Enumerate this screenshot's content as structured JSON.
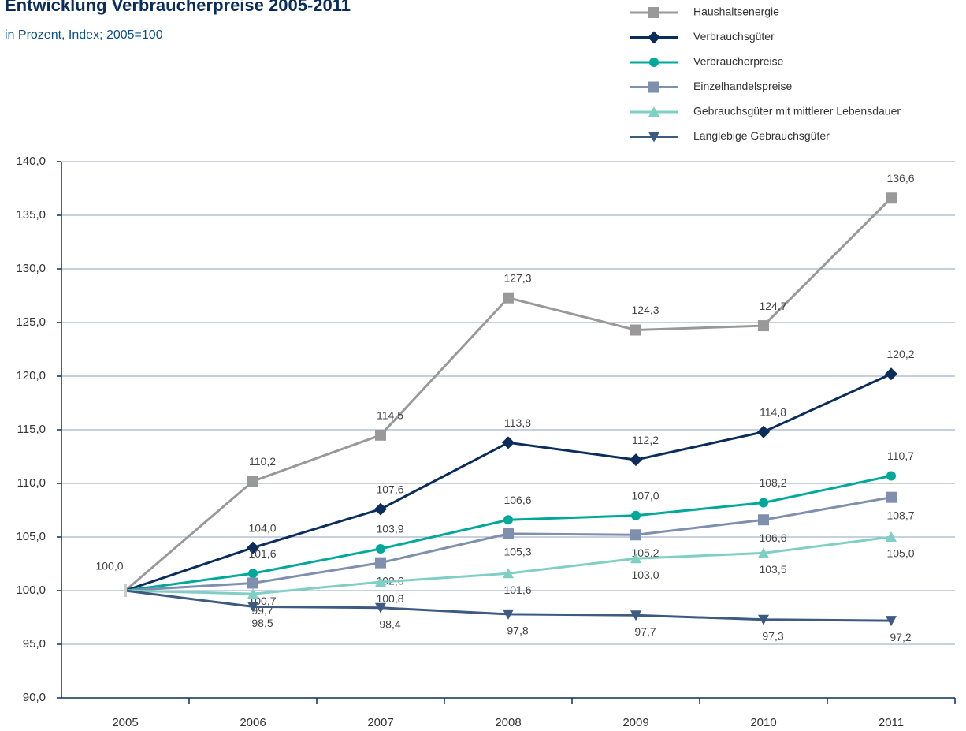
{
  "chart_data": {
    "type": "line",
    "title": "Entwicklung Verbraucherpreise 2005-2011",
    "subtitle": "in Prozent, Index; 2005=100",
    "categories": [
      "2005",
      "2006",
      "2007",
      "2008",
      "2009",
      "2010",
      "2011"
    ],
    "ylim": [
      90,
      140
    ],
    "yticks": [
      {
        "value": 90,
        "label": "90,0"
      },
      {
        "value": 95,
        "label": "95,0"
      },
      {
        "value": 100,
        "label": "100,0"
      },
      {
        "value": 105,
        "label": "105,0"
      },
      {
        "value": 110,
        "label": "110,0"
      },
      {
        "value": 115,
        "label": "115,0"
      },
      {
        "value": 120,
        "label": "120,0"
      },
      {
        "value": 125,
        "label": "125,0"
      },
      {
        "value": 130,
        "label": "130,0"
      },
      {
        "value": 135,
        "label": "135,0"
      },
      {
        "value": 140,
        "label": "140,0"
      }
    ],
    "grid": true,
    "legend": "top-right",
    "series": [
      {
        "name": "Haushaltsenergie",
        "color": "#999999",
        "marker": "square",
        "values": [
          100.0,
          110.2,
          114.5,
          127.3,
          124.3,
          124.7,
          136.6
        ],
        "value_labels": [
          "100,0",
          "110,2",
          "114,5",
          "127,3",
          "124,3",
          "124,7",
          "136,6"
        ]
      },
      {
        "name": "Verbrauchsgüter",
        "color": "#0b2d5b",
        "marker": "diamond",
        "values": [
          100.0,
          104.0,
          107.6,
          113.8,
          112.2,
          114.8,
          120.2
        ],
        "value_labels": [
          null,
          "104,0",
          "107,6",
          "113,8",
          "112,2",
          "114,8",
          "120,2"
        ]
      },
      {
        "name": "Verbraucherpreise",
        "color": "#00a89a",
        "marker": "circle",
        "values": [
          100.0,
          101.6,
          103.9,
          106.6,
          107.0,
          108.2,
          110.7
        ],
        "value_labels": [
          null,
          "101,6",
          "103,9",
          "106,6",
          "107,0",
          "108,2",
          "110,7"
        ]
      },
      {
        "name": "Einzelhandelspreise",
        "color": "#7f8fae",
        "marker": "square",
        "values": [
          100.0,
          100.7,
          102.6,
          105.3,
          105.2,
          106.6,
          108.7
        ],
        "value_labels": [
          null,
          "100,7",
          "102,6",
          "105,3",
          "105,2",
          "106,6",
          "108,7"
        ]
      },
      {
        "name": "Gebrauchsgüter mit mittlerer Lebensdauer",
        "color": "#7fcfc4",
        "marker": "triangle-up",
        "values": [
          100.0,
          99.7,
          100.8,
          101.6,
          103.0,
          103.5,
          105.0
        ],
        "value_labels": [
          null,
          "99,7",
          "100,8",
          "101,6",
          "103,0",
          "103,5",
          "105,0"
        ]
      },
      {
        "name": "Langlebige Gebrauchsgüter",
        "color": "#3d5a80",
        "marker": "triangle-down",
        "values": [
          100.0,
          98.5,
          98.4,
          97.8,
          97.7,
          97.3,
          97.2
        ],
        "value_labels": [
          null,
          "98,5",
          "98,4",
          "97,8",
          "97,7",
          "97,3",
          "97,2"
        ]
      }
    ]
  }
}
